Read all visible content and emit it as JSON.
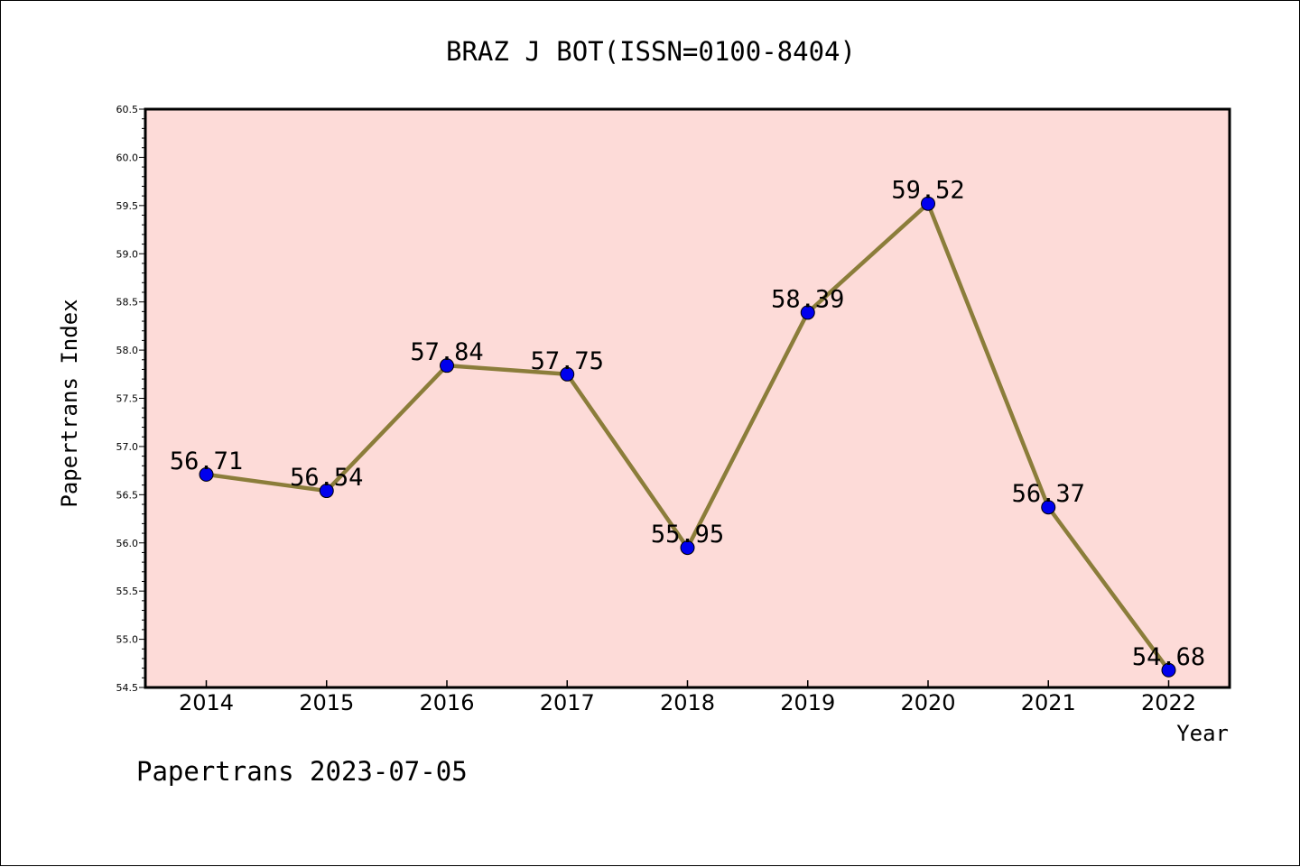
{
  "chart_data": {
    "type": "line",
    "title": "BRAZ J BOT(ISSN=0100-8404)",
    "xlabel": "Year",
    "ylabel": "Papertrans Index",
    "footer": "Papertrans 2023-07-05",
    "categories": [
      "2014",
      "2015",
      "2016",
      "2017",
      "2018",
      "2019",
      "2020",
      "2021",
      "2022"
    ],
    "series": [
      {
        "values": [
          56.71,
          56.54,
          57.84,
          57.75,
          55.95,
          58.39,
          59.52,
          56.37,
          54.68
        ],
        "labels": [
          "56.71",
          "56.54",
          "57.84",
          "57.75",
          "55.95",
          "58.39",
          "59.52",
          "56.37",
          "54.68"
        ]
      }
    ],
    "ylim": [
      54.5,
      60.5
    ],
    "yticks": [
      "54.5",
      "55.0",
      "55.5",
      "56.0",
      "56.5",
      "57.0",
      "57.5",
      "58.0",
      "58.5",
      "59.0",
      "59.5",
      "60.0",
      "60.5"
    ],
    "grid": false,
    "colors": {
      "plot_background": "#fddbd8",
      "line": "#8b7d3a",
      "marker": "#0000ee",
      "axis": "#000000"
    }
  }
}
